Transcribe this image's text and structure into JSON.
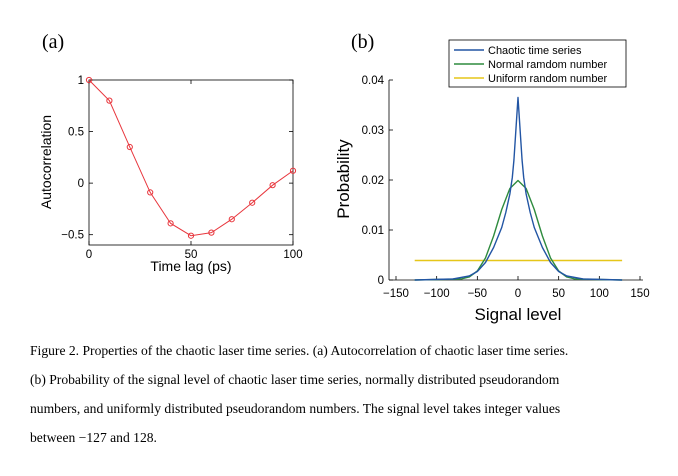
{
  "chart_data": [
    {
      "type": "line",
      "panel_label": "(a)",
      "xlabel": "Time lag (ps)",
      "ylabel": "Autocorrelation",
      "xlim": [
        0,
        100
      ],
      "ylim": [
        -0.6,
        1.0
      ],
      "xticks": [
        0,
        50,
        100
      ],
      "yticks": [
        -0.5,
        0,
        0.5,
        1
      ],
      "ytick_labels": [
        "−0.5",
        "0",
        "0.5",
        "1"
      ],
      "grid": false,
      "series": [
        {
          "marker": "circle",
          "color": "#e8363d",
          "x": [
            0,
            10,
            20,
            30,
            40,
            50,
            60,
            70,
            80,
            90,
            100
          ],
          "y": [
            1.0,
            0.8,
            0.35,
            -0.09,
            -0.39,
            -0.51,
            -0.48,
            -0.35,
            -0.19,
            -0.02,
            0.12
          ]
        }
      ]
    },
    {
      "type": "line",
      "panel_label": "(b)",
      "xlabel": "Signal level",
      "ylabel": "Probability",
      "xlim": [
        -150,
        150
      ],
      "ylim": [
        0,
        0.04
      ],
      "xticks": [
        -150,
        -100,
        -50,
        0,
        50,
        100,
        150
      ],
      "xtick_labels": [
        "−150",
        "−100",
        "−50",
        "0",
        "50",
        "100",
        "150"
      ],
      "yticks": [
        0,
        0.01,
        0.02,
        0.03,
        0.04
      ],
      "ytick_labels": [
        "0",
        "0.01",
        "0.02",
        "0.03",
        "0.04"
      ],
      "grid": false,
      "legend_position": "top-right",
      "series": [
        {
          "name": "Chaotic time series",
          "color": "#2255a4",
          "x": [
            -127,
            -80,
            -60,
            -50,
            -40,
            -30,
            -20,
            -15,
            -10,
            -7,
            -5,
            -3,
            -1,
            0,
            1,
            3,
            5,
            7,
            10,
            15,
            20,
            30,
            40,
            50,
            60,
            80,
            128
          ],
          "y": [
            0,
            0.0002,
            0.0008,
            0.0017,
            0.0035,
            0.0065,
            0.0105,
            0.0135,
            0.0172,
            0.0205,
            0.024,
            0.029,
            0.034,
            0.0365,
            0.034,
            0.029,
            0.024,
            0.0205,
            0.0172,
            0.0135,
            0.0105,
            0.0065,
            0.0035,
            0.0017,
            0.0008,
            0.0002,
            0
          ]
        },
        {
          "name": "Normal ramdom number",
          "color": "#2e8b3e",
          "x": [
            -127,
            -70,
            -60,
            -50,
            -40,
            -30,
            -20,
            -10,
            0,
            10,
            20,
            30,
            40,
            50,
            60,
            70,
            128
          ],
          "y": [
            0,
            0.0002,
            0.0006,
            0.0018,
            0.0044,
            0.0088,
            0.0141,
            0.0183,
            0.0199,
            0.0183,
            0.0141,
            0.0088,
            0.0044,
            0.0018,
            0.0006,
            0.0002,
            0
          ]
        },
        {
          "name": "Uniform random number",
          "color": "#e6c619",
          "x": [
            -127,
            128
          ],
          "y": [
            0.0039,
            0.0039
          ]
        }
      ]
    }
  ],
  "caption": {
    "line1": "Figure 2. Properties of the chaotic laser time series. (a) Autocorrelation of chaotic laser time series.",
    "line2": "(b) Probability of the signal level of chaotic laser time series, normally distributed pseudorandom",
    "line3": "numbers, and uniformly distributed pseudorandom numbers. The signal level takes integer values",
    "line4": "between −127 and 128."
  }
}
